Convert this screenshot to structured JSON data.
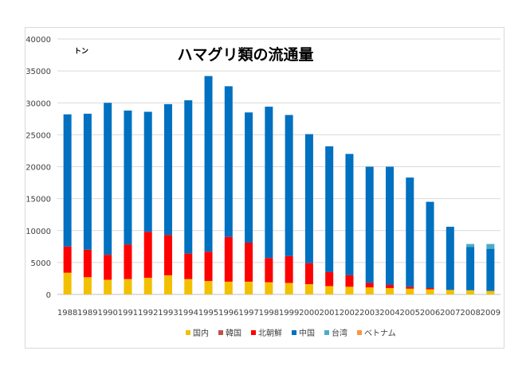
{
  "chart_data": {
    "type": "bar",
    "stacked": true,
    "title": "ハマグリ類の流通量",
    "unit_label": "トン",
    "ylim": [
      0,
      40000
    ],
    "y_ticks": [
      0,
      5000,
      10000,
      15000,
      20000,
      25000,
      30000,
      35000,
      40000
    ],
    "grid": true,
    "legend_position": "bottom",
    "categories": [
      "1988",
      "1989",
      "1990",
      "1991",
      "1992",
      "1993",
      "1994",
      "1995",
      "1996",
      "1997",
      "1998",
      "1999",
      "2000",
      "2001",
      "2002",
      "2003",
      "2004",
      "2005",
      "2006",
      "2007",
      "2008",
      "2009"
    ],
    "series": [
      {
        "name": "国内",
        "color": "#f2c000",
        "values": [
          3400,
          2700,
          2300,
          2400,
          2600,
          3000,
          2400,
          2100,
          2000,
          2000,
          1900,
          1800,
          1600,
          1300,
          1200,
          1100,
          1000,
          900,
          800,
          700,
          650,
          550
        ]
      },
      {
        "name": "韓国",
        "color": "#c0504d",
        "values": [
          0,
          0,
          0,
          0,
          0,
          0,
          0,
          0,
          0,
          0,
          0,
          0,
          0,
          0,
          0,
          0,
          0,
          0,
          0,
          0,
          0,
          0
        ]
      },
      {
        "name": "北朝鮮",
        "color": "#ff0000",
        "values": [
          4100,
          4300,
          3900,
          5400,
          7200,
          6300,
          4000,
          4600,
          7000,
          6100,
          3800,
          4200,
          3300,
          2200,
          1800,
          700,
          500,
          300,
          200,
          0,
          0,
          0
        ]
      },
      {
        "name": "中国",
        "color": "#0070c0",
        "values": [
          20700,
          21300,
          23800,
          21000,
          18800,
          20500,
          24000,
          27500,
          23600,
          20400,
          23700,
          22100,
          20200,
          19700,
          19000,
          18200,
          18500,
          17100,
          13500,
          9900,
          6800,
          6600
        ]
      },
      {
        "name": "台湾",
        "color": "#4bacc6",
        "values": [
          0,
          0,
          0,
          0,
          0,
          0,
          0,
          0,
          0,
          0,
          0,
          0,
          0,
          0,
          0,
          0,
          0,
          0,
          0,
          0,
          450,
          750
        ]
      },
      {
        "name": "ベトナム",
        "color": "#f79646",
        "values": [
          0,
          0,
          0,
          0,
          0,
          0,
          0,
          0,
          0,
          0,
          0,
          0,
          0,
          0,
          0,
          0,
          0,
          0,
          0,
          0,
          0,
          0
        ]
      }
    ]
  }
}
